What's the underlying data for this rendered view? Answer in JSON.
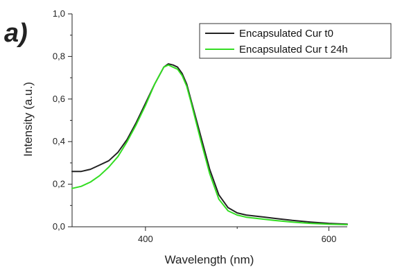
{
  "panel_label": "a)",
  "colors": {
    "series_t0": "#222222",
    "series_t24": "#33dd22",
    "axis": "#222222"
  },
  "chart_data": {
    "type": "line",
    "title": "",
    "xlabel": "Wavelength (nm)",
    "ylabel": "Intensity (a.u.)",
    "xlim": [
      320,
      620
    ],
    "ylim": [
      0.0,
      1.0
    ],
    "x_ticks": [
      400,
      600
    ],
    "x_tick_labels": [
      "400",
      "600"
    ],
    "y_ticks": [
      0.0,
      0.2,
      0.4,
      0.6,
      0.8,
      1.0
    ],
    "y_tick_labels": [
      "0,0",
      "0,2",
      "0,4",
      "0,6",
      "0,8",
      "1,0"
    ],
    "grid": false,
    "legend_position": "top-right",
    "series": [
      {
        "name": "Encapsulated Cur t0",
        "color": "#222222",
        "x": [
          320,
          330,
          340,
          350,
          360,
          370,
          380,
          390,
          400,
          410,
          420,
          425,
          430,
          435,
          440,
          445,
          450,
          460,
          470,
          480,
          490,
          500,
          510,
          520,
          540,
          560,
          580,
          600,
          620
        ],
        "y": [
          0.26,
          0.26,
          0.27,
          0.29,
          0.31,
          0.35,
          0.41,
          0.49,
          0.58,
          0.67,
          0.75,
          0.765,
          0.76,
          0.75,
          0.72,
          0.67,
          0.59,
          0.43,
          0.27,
          0.15,
          0.09,
          0.065,
          0.055,
          0.05,
          0.04,
          0.03,
          0.022,
          0.016,
          0.012
        ]
      },
      {
        "name": "Encapsulated Cur t 24h",
        "color": "#33dd22",
        "x": [
          320,
          330,
          340,
          350,
          360,
          370,
          380,
          390,
          400,
          410,
          420,
          425,
          430,
          435,
          440,
          445,
          450,
          460,
          470,
          480,
          490,
          500,
          510,
          520,
          540,
          560,
          580,
          600,
          620
        ],
        "y": [
          0.18,
          0.19,
          0.21,
          0.24,
          0.28,
          0.33,
          0.4,
          0.48,
          0.57,
          0.67,
          0.75,
          0.76,
          0.75,
          0.74,
          0.71,
          0.66,
          0.58,
          0.41,
          0.25,
          0.13,
          0.075,
          0.055,
          0.045,
          0.04,
          0.03,
          0.022,
          0.016,
          0.012,
          0.01
        ]
      }
    ]
  }
}
